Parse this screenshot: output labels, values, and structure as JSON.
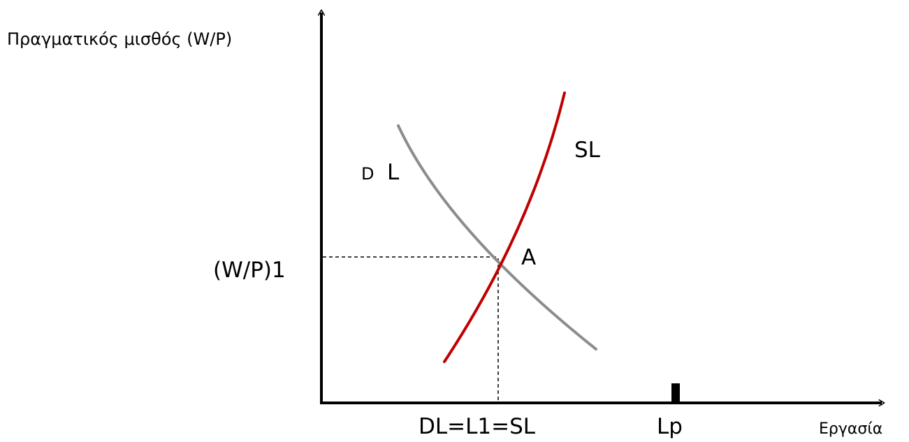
{
  "labels": {
    "y_axis": "Πραγματικός μισθός (W/P)",
    "x_axis": "Εργασία",
    "equilibrium_wage": "(W/P)1",
    "equilibrium_quantity": "DL=L1=SL",
    "full_employment": "Lp",
    "demand_d": "D",
    "demand_l": "L",
    "supply": "SL",
    "point": "A"
  },
  "colors": {
    "axes": "#000000",
    "demand_curve": "#8c8c8c",
    "supply_curve": "#c00000",
    "guide_lines": "#000000",
    "marker": "#000000"
  }
}
